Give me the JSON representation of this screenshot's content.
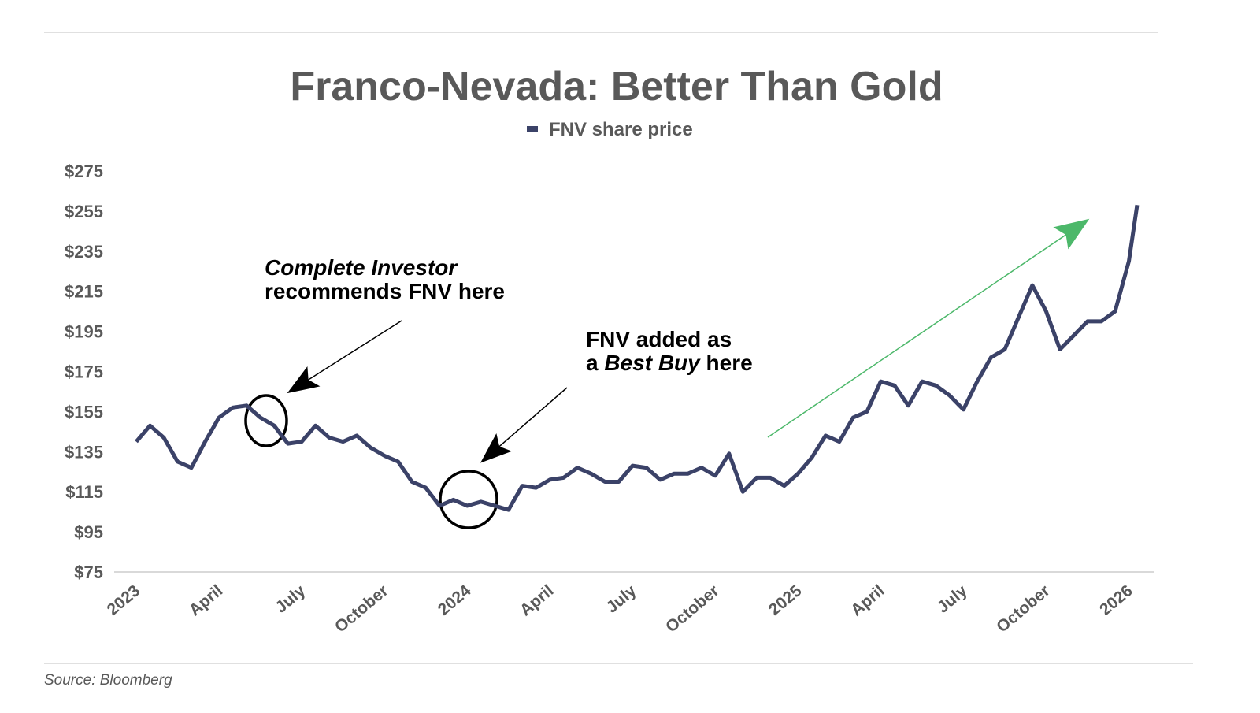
{
  "chart_data": {
    "type": "line",
    "title": "Franco-Nevada: Better Than Gold",
    "source": "Source: Bloomberg",
    "series": [
      {
        "name": "FNV share price",
        "color": "#3b4268",
        "x": [
          0,
          0.5,
          1,
          1.5,
          2,
          2.5,
          3,
          3.5,
          4,
          4.5,
          5,
          5.5,
          6,
          6.5,
          7,
          7.5,
          8,
          8.5,
          9,
          9.5,
          10,
          10.5,
          11,
          11.5,
          12,
          12.5,
          13,
          13.5,
          14,
          14.5,
          15,
          15.5,
          16,
          16.5,
          17,
          17.5,
          18,
          18.5,
          19,
          19.5,
          20,
          20.5,
          21,
          21.5,
          22,
          22.5,
          23,
          23.5,
          24,
          24.5,
          25,
          25.5,
          26,
          26.5,
          27,
          27.5,
          28,
          28.5,
          29,
          29.5,
          30,
          30.5,
          31,
          31.5,
          32,
          32.5,
          33,
          33.5,
          34,
          34.5,
          35,
          35.5,
          36,
          36.3
        ],
        "values": [
          140,
          148,
          142,
          130,
          127,
          140,
          152,
          157,
          158,
          152,
          148,
          139,
          140,
          148,
          142,
          140,
          143,
          137,
          133,
          130,
          120,
          117,
          108,
          111,
          108,
          110,
          108,
          106,
          118,
          117,
          121,
          122,
          127,
          124,
          120,
          120,
          128,
          127,
          121,
          124,
          124,
          127,
          123,
          134,
          115,
          122,
          122,
          118,
          124,
          132,
          143,
          140,
          152,
          155,
          170,
          168,
          158,
          170,
          168,
          163,
          156,
          170,
          182,
          186,
          202,
          218,
          205,
          186,
          193,
          200,
          200,
          205,
          230,
          258
        ]
      }
    ],
    "xlim": [
      -0.8,
      36.9
    ],
    "xticks": [
      {
        "value": 0,
        "label": "2023"
      },
      {
        "value": 3,
        "label": "April"
      },
      {
        "value": 6,
        "label": "July"
      },
      {
        "value": 9,
        "label": "October"
      },
      {
        "value": 12,
        "label": "2024"
      },
      {
        "value": 15,
        "label": "April"
      },
      {
        "value": 18,
        "label": "July"
      },
      {
        "value": 21,
        "label": "October"
      },
      {
        "value": 24,
        "label": "2025"
      },
      {
        "value": 27,
        "label": "April"
      },
      {
        "value": 30,
        "label": "July"
      },
      {
        "value": 33,
        "label": "October"
      },
      {
        "value": 36,
        "label": "2026"
      }
    ],
    "ylim": [
      75,
      275
    ],
    "yticks": [
      {
        "value": 75,
        "label": "$75"
      },
      {
        "value": 95,
        "label": "$95"
      },
      {
        "value": 115,
        "label": "$115"
      },
      {
        "value": 135,
        "label": "$135"
      },
      {
        "value": 155,
        "label": "$155"
      },
      {
        "value": 175,
        "label": "$175"
      },
      {
        "value": 195,
        "label": "$195"
      },
      {
        "value": 215,
        "label": "$215"
      },
      {
        "value": 235,
        "label": "$235"
      },
      {
        "value": 255,
        "label": "$255"
      },
      {
        "value": 275,
        "label": "$275"
      }
    ],
    "annotations": [
      {
        "lines": [
          [
            {
              "text": "Complete Investor",
              "italic": true
            }
          ],
          [
            {
              "text": "recommends FNV here",
              "italic": false
            }
          ]
        ]
      },
      {
        "lines": [
          [
            {
              "text": "FNV added as",
              "italic": false
            }
          ],
          [
            {
              "text": "a ",
              "italic": false
            },
            {
              "text": "Best Buy",
              "italic": true
            },
            {
              "text": " here",
              "italic": false
            }
          ]
        ]
      }
    ]
  }
}
